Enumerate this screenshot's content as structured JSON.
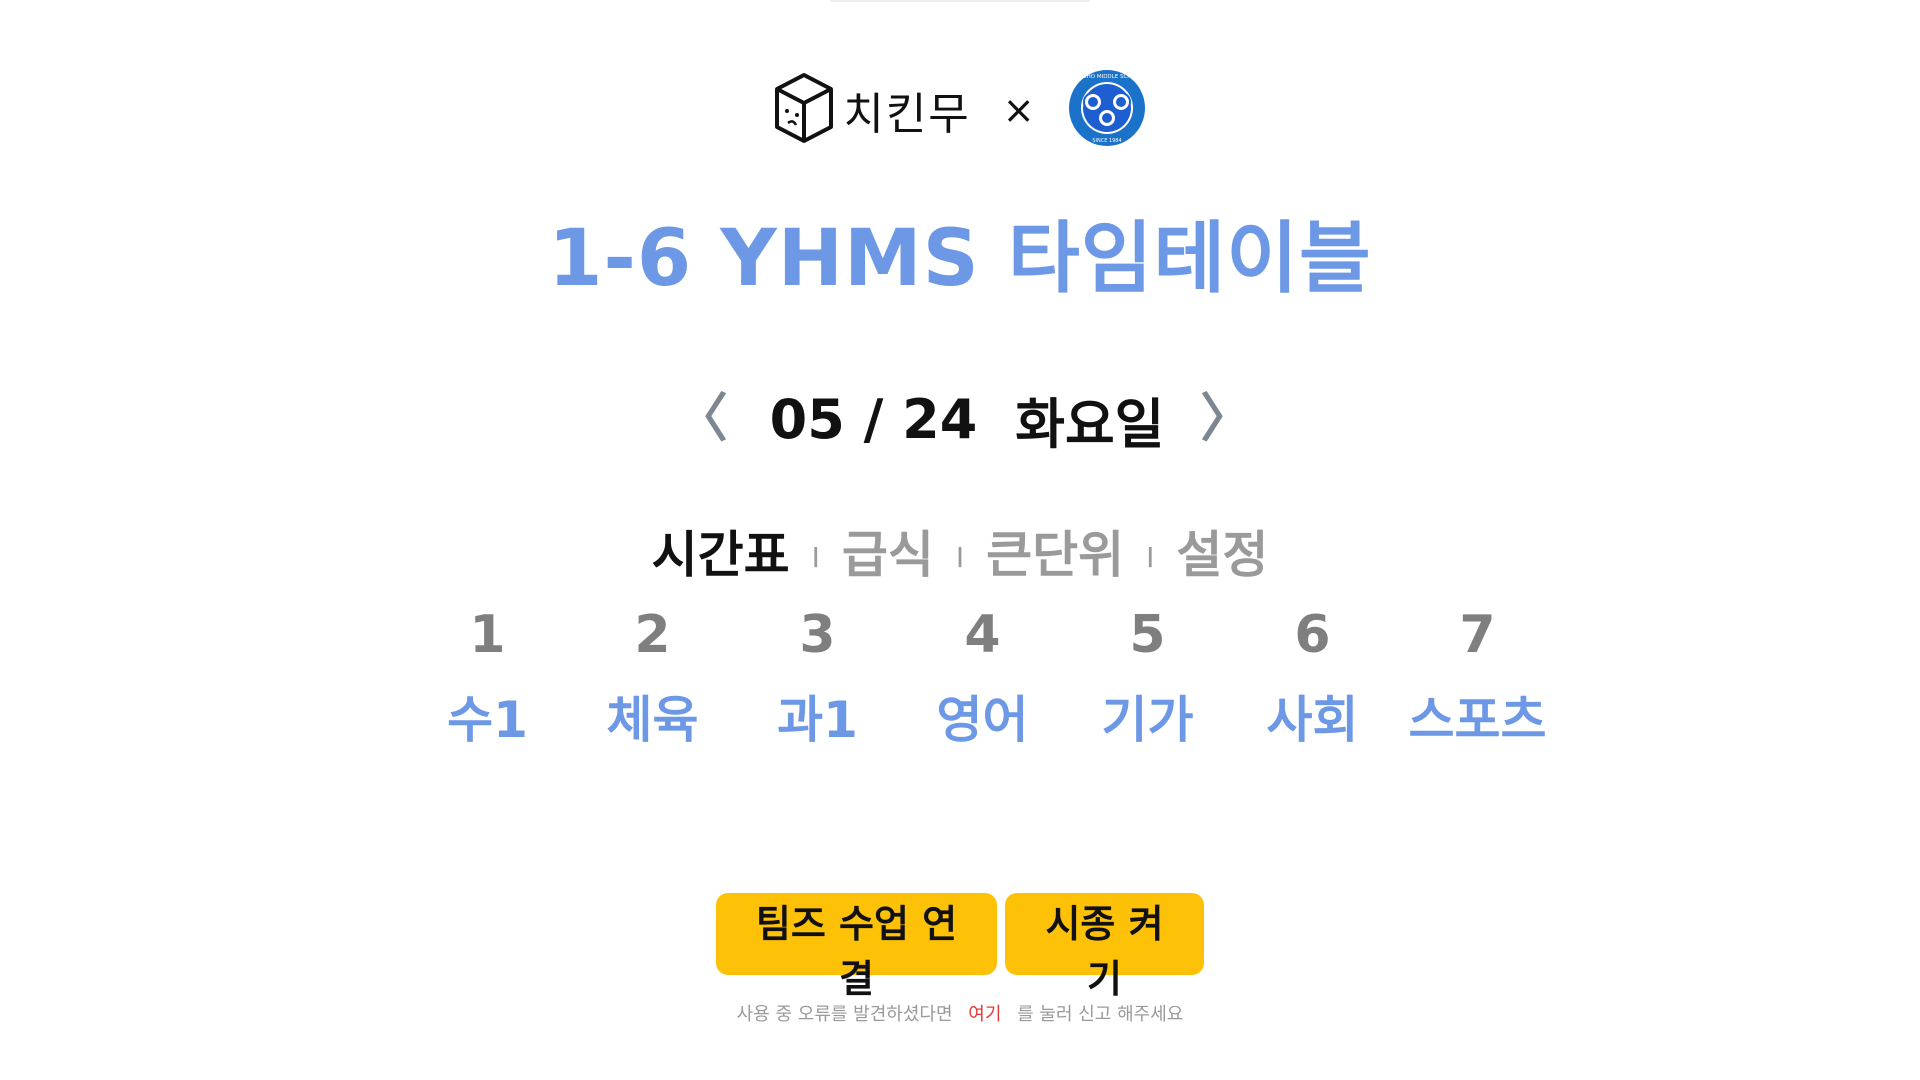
{
  "logo": {
    "brand_text": "치킨무",
    "cross": "×",
    "school_logo_text": "YONGHO MIDDLE SCHOOL",
    "school_since": "SINCE 1984"
  },
  "title": "1-6 YHMS 타임테이블",
  "date_nav": {
    "prev": "〈",
    "date": "05 / 24",
    "weekday": "화요일",
    "next": "〉"
  },
  "tabs": [
    {
      "label": "시간표",
      "active": true
    },
    {
      "label": "급식",
      "active": false
    },
    {
      "label": "큰단위",
      "active": false
    },
    {
      "label": "설정",
      "active": false
    }
  ],
  "tab_separator": "I",
  "periods": [
    {
      "number": "1",
      "subject": "수1"
    },
    {
      "number": "2",
      "subject": "체육"
    },
    {
      "number": "3",
      "subject": "과1"
    },
    {
      "number": "4",
      "subject": "영어"
    },
    {
      "number": "5",
      "subject": "기가"
    },
    {
      "number": "6",
      "subject": "사회"
    },
    {
      "number": "7",
      "subject": "스포츠"
    }
  ],
  "buttons": {
    "teams": "팀즈 수업 연결",
    "bell": "시종 켜기"
  },
  "footer": {
    "before": "사용 중 오류를 발견하셨다면",
    "link": "여기",
    "after": "를 눌러 신고 해주세요"
  },
  "colors": {
    "accent_blue": "#6c98e6",
    "button_yellow": "#fdc208",
    "link_red": "#e53935",
    "muted_gray": "#9a9a9a",
    "school_logo_blue": "#1a73c9"
  },
  "icons": {
    "brand_logo": "cube-face-icon",
    "school_logo": "school-emblem-icon"
  }
}
